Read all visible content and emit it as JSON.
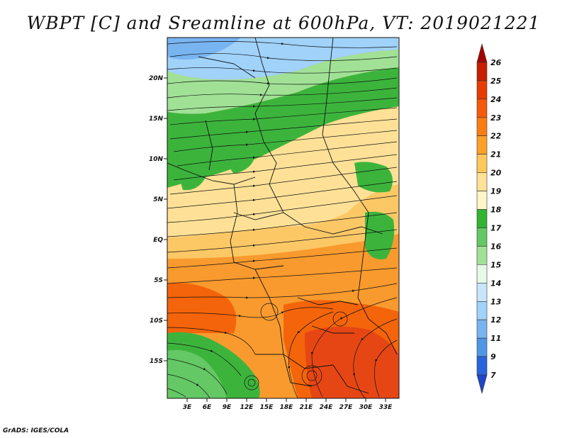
{
  "title": "WBPT [C] and Sreamline at 600hPa, VT: 2019021221",
  "footer": "GrADS: IGES/COLA",
  "lat_labels": [
    "20N",
    "15N",
    "10N",
    "5N",
    "EQ",
    "5S",
    "10S",
    "15S"
  ],
  "lon_labels": [
    "3E",
    "6E",
    "9E",
    "12E",
    "15E",
    "18E",
    "21E",
    "24E",
    "27E",
    "30E",
    "33E"
  ],
  "colorbar": {
    "labels": [
      "26",
      "25",
      "24",
      "23",
      "22",
      "21",
      "20",
      "19",
      "18",
      "17",
      "16",
      "15",
      "14",
      "13",
      "12",
      "11",
      "9",
      "7"
    ],
    "colors": [
      "#a50000",
      "#c81e00",
      "#e63c00",
      "#f45a0a",
      "#fa7d14",
      "#fca028",
      "#fec85a",
      "#fee196",
      "#fff5c8",
      "#32b432",
      "#64c864",
      "#a0e196",
      "#e6fae6",
      "#c8e6fa",
      "#a0d2fa",
      "#78b4f0",
      "#5096e6",
      "#2864dc",
      "#1e46c8"
    ]
  },
  "map_regions": {
    "green_north": "#3cb43c",
    "pale_green": "#a0e196",
    "light_blue": "#a0d2fa",
    "cream": "#fee196",
    "yellow_orange": "#fcc866",
    "orange": "#f99a2e",
    "deep_orange": "#f4640a",
    "red_orange": "#e64614"
  }
}
